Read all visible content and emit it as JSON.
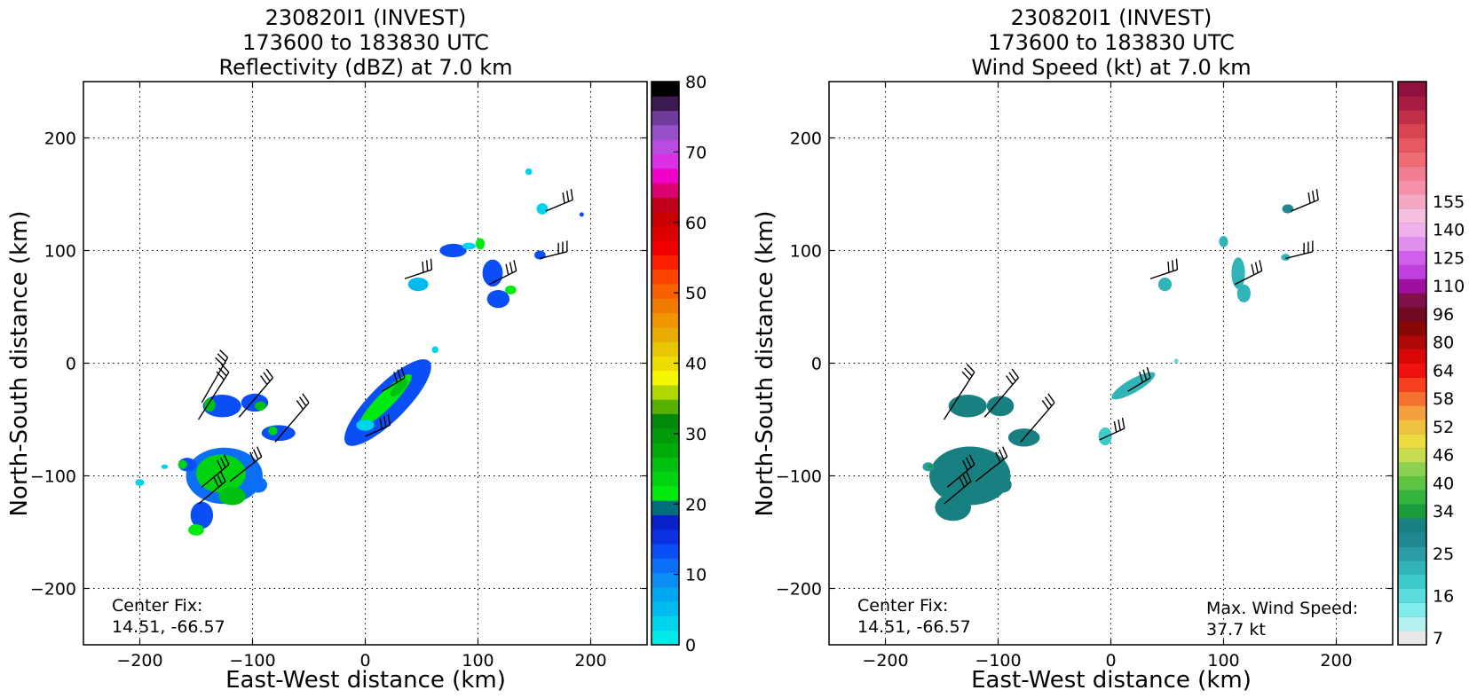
{
  "figure": {
    "background": "#ffffff"
  },
  "chart_data": [
    {
      "type": "heatmap",
      "variant": "reflectivity",
      "title": [
        "230820I1 (INVEST)",
        "173600 to 183830 UTC",
        "Reflectivity (dBZ) at 7.0 km"
      ],
      "xlabel": "East-West distance (km)",
      "ylabel": "North-South distance (km)",
      "xlim": [
        -250,
        250
      ],
      "ylim": [
        -250,
        250
      ],
      "xticks": [
        -200,
        -100,
        0,
        100,
        200
      ],
      "yticks": [
        -200,
        -100,
        0,
        100,
        200
      ],
      "xtick_labels": [
        "−200",
        "−100",
        "0",
        "100",
        "200"
      ],
      "ytick_labels": [
        "−200",
        "−100",
        "0",
        "100",
        "200"
      ],
      "grid": true,
      "annotations": {
        "center_fix_label": "Center Fix:",
        "center_fix_value": "14.51, -66.57"
      },
      "colorbar": {
        "min": 0,
        "max": 80,
        "tick_values": [
          0,
          10,
          20,
          30,
          40,
          50,
          60,
          70,
          80
        ],
        "tick_labels": [
          "0",
          "10",
          "20",
          "30",
          "40",
          "50",
          "60",
          "70",
          "80"
        ],
        "colors": [
          "#00eaea",
          "#00d4ec",
          "#00bcee",
          "#00a6f0",
          "#0a8ef4",
          "#0a6ef6",
          "#0a4ef8",
          "#0a32e2",
          "#0a20c8",
          "#006e7e",
          "#00ea10",
          "#00d410",
          "#00c010",
          "#00ac0a",
          "#009a0a",
          "#008a0a",
          "#58b000",
          "#b0d800",
          "#f6f600",
          "#ecdc00",
          "#e8c600",
          "#e8ac00",
          "#f09400",
          "#f07a00",
          "#f86000",
          "#fc4400",
          "#fc2000",
          "#f00000",
          "#dc0000",
          "#c80000",
          "#c0001c",
          "#dc0070",
          "#f000c8",
          "#dc30e6",
          "#b84ce0",
          "#9650c8",
          "#703c9c",
          "#3c1c50",
          "#000000"
        ]
      },
      "regions": [
        {
          "x": -127,
          "y": -38,
          "rx": 17,
          "ry": 10,
          "value": 14
        },
        {
          "x": -138,
          "y": -37,
          "rx": 5,
          "ry": 6,
          "value": 25
        },
        {
          "x": -98,
          "y": -35,
          "rx": 12,
          "ry": 8,
          "value": 14
        },
        {
          "x": -93,
          "y": -38,
          "rx": 5,
          "ry": 4,
          "value": 25
        },
        {
          "x": -77,
          "y": -62,
          "rx": 15,
          "ry": 7,
          "value": 14
        },
        {
          "x": -82,
          "y": -60,
          "rx": 4,
          "ry": 4,
          "value": 23
        },
        {
          "x": -125,
          "y": -100,
          "rx": 34,
          "ry": 25,
          "value": 12
        },
        {
          "x": -128,
          "y": -98,
          "rx": 22,
          "ry": 17,
          "value": 23
        },
        {
          "x": -145,
          "y": -135,
          "rx": 10,
          "ry": 12,
          "value": 14
        },
        {
          "x": -118,
          "y": -118,
          "rx": 12,
          "ry": 8,
          "value": 26
        },
        {
          "x": -158,
          "y": -90,
          "rx": 8,
          "ry": 6,
          "value": 14
        },
        {
          "x": -162,
          "y": -90,
          "rx": 4,
          "ry": 4,
          "value": 24
        },
        {
          "x": -95,
          "y": -108,
          "rx": 8,
          "ry": 7,
          "value": 12
        },
        {
          "x": -150,
          "y": -148,
          "rx": 7,
          "ry": 5,
          "value": 22
        },
        {
          "x": -200,
          "y": -106,
          "rx": 4,
          "ry": 3,
          "value": 3
        },
        {
          "x": -178,
          "y": -92,
          "rx": 3,
          "ry": 2,
          "value": 4
        },
        {
          "x": 20,
          "y": -35,
          "rx": 52,
          "ry": 16,
          "rotate": -45,
          "value": 13
        },
        {
          "x": 18,
          "y": -33,
          "rx": 32,
          "ry": 7,
          "rotate": -45,
          "value": 22
        },
        {
          "x": 30,
          "y": -22,
          "rx": 10,
          "ry": 4,
          "rotate": -45,
          "value": 25
        },
        {
          "x": 0,
          "y": -55,
          "rx": 8,
          "ry": 5,
          "value": 4
        },
        {
          "x": 62,
          "y": 12,
          "rx": 3,
          "ry": 3,
          "value": 3
        },
        {
          "x": 78,
          "y": 100,
          "rx": 12,
          "ry": 6,
          "value": 13
        },
        {
          "x": 92,
          "y": 104,
          "rx": 6,
          "ry": 3,
          "value": 4
        },
        {
          "x": 102,
          "y": 106,
          "rx": 4,
          "ry": 5,
          "value": 22
        },
        {
          "x": 113,
          "y": 80,
          "rx": 9,
          "ry": 12,
          "value": 14
        },
        {
          "x": 118,
          "y": 57,
          "rx": 10,
          "ry": 8,
          "value": 13
        },
        {
          "x": 129,
          "y": 65,
          "rx": 5,
          "ry": 4,
          "value": 21
        },
        {
          "x": 47,
          "y": 70,
          "rx": 9,
          "ry": 6,
          "value": 5
        },
        {
          "x": 155,
          "y": 96,
          "rx": 5,
          "ry": 4,
          "value": 14
        },
        {
          "x": 157,
          "y": 137,
          "rx": 5,
          "ry": 5,
          "value": 4
        },
        {
          "x": 145,
          "y": 170,
          "rx": 3,
          "ry": 3,
          "value": 4
        },
        {
          "x": 192,
          "y": 132,
          "rx": 2,
          "ry": 2,
          "value": 13
        }
      ],
      "wind_barbs": [
        {
          "x": -148,
          "y": -50,
          "u": 27,
          "v": 42,
          "flags": 3
        },
        {
          "x": -145,
          "y": -35,
          "u": 23,
          "v": 40,
          "flags": 3
        },
        {
          "x": -112,
          "y": -48,
          "u": 30,
          "v": 35,
          "flags": 3
        },
        {
          "x": -80,
          "y": -70,
          "u": 30,
          "v": 35,
          "flags": 3
        },
        {
          "x": -145,
          "y": -110,
          "u": 24,
          "v": 20,
          "flags": 3
        },
        {
          "x": -148,
          "y": -125,
          "u": 24,
          "v": 20,
          "flags": 3
        },
        {
          "x": -120,
          "y": -105,
          "u": 28,
          "v": 22,
          "flags": 3
        },
        {
          "x": 0,
          "y": -65,
          "u": 22,
          "v": 10,
          "flags": 3
        },
        {
          "x": 15,
          "y": -25,
          "u": 20,
          "v": 12,
          "flags": 3
        },
        {
          "x": 35,
          "y": 75,
          "u": 24,
          "v": 8,
          "flags": 3
        },
        {
          "x": 110,
          "y": 70,
          "u": 24,
          "v": 12,
          "flags": 3
        },
        {
          "x": 160,
          "y": 135,
          "u": 24,
          "v": 10,
          "flags": 3
        },
        {
          "x": 155,
          "y": 93,
          "u": 24,
          "v": 6,
          "flags": 3
        }
      ]
    },
    {
      "type": "heatmap",
      "variant": "wind_speed",
      "title": [
        "230820I1 (INVEST)",
        "173600 to 183830 UTC",
        "Wind Speed (kt) at 7.0 km"
      ],
      "xlabel": "East-West distance (km)",
      "ylabel": "North-South distance (km)",
      "xlim": [
        -250,
        250
      ],
      "ylim": [
        -250,
        250
      ],
      "xticks": [
        -200,
        -100,
        0,
        100,
        200
      ],
      "yticks": [
        -200,
        -100,
        0,
        100,
        200
      ],
      "xtick_labels": [
        "−200",
        "−100",
        "0",
        "100",
        "200"
      ],
      "ytick_labels": [
        "−200",
        "−100",
        "0",
        "100",
        "200"
      ],
      "grid": true,
      "annotations": {
        "center_fix_label": "Center Fix:",
        "center_fix_value": "14.51, -66.57",
        "max_wind_label": "Max. Wind Speed:",
        "max_wind_value": "37.7 kt"
      },
      "colorbar": {
        "tick_labels": [
          "7",
          "16",
          "25",
          "34",
          "40",
          "46",
          "52",
          "58",
          "64",
          "80",
          "96",
          "110",
          "125",
          "140",
          "155"
        ],
        "tick_segments": [
          0,
          3,
          6,
          9,
          11,
          13,
          15,
          17,
          19,
          21,
          23,
          25,
          27,
          29,
          31
        ],
        "colors": [
          "#e8e8e8",
          "#b4f0ee",
          "#80ecec",
          "#5cdcdc",
          "#3ccaca",
          "#30b4b8",
          "#2a9ca4",
          "#208890",
          "#188080",
          "#1a9c3c",
          "#36b440",
          "#5cc440",
          "#8cd050",
          "#c8dc50",
          "#ecdc40",
          "#f0c040",
          "#f4a040",
          "#f67030",
          "#f84020",
          "#f01010",
          "#d80808",
          "#b00808",
          "#880808",
          "#700a24",
          "#80104a",
          "#a010a0",
          "#c040e0",
          "#d060ec",
          "#e090ec",
          "#f0b0ec",
          "#f8c0e0",
          "#f4a8c4",
          "#f490a8",
          "#f07c90",
          "#f06c74",
          "#e85860",
          "#d84450",
          "#c03048",
          "#a81c44",
          "#901040"
        ]
      },
      "regions": [
        {
          "x": -127,
          "y": -38,
          "rx": 17,
          "ry": 10,
          "value": 8
        },
        {
          "x": -98,
          "y": -38,
          "rx": 12,
          "ry": 9,
          "value": 8
        },
        {
          "x": -77,
          "y": -66,
          "rx": 14,
          "ry": 8,
          "value": 8
        },
        {
          "x": -125,
          "y": -100,
          "rx": 36,
          "ry": 26,
          "value": 8
        },
        {
          "x": -140,
          "y": -128,
          "rx": 16,
          "ry": 12,
          "value": 8
        },
        {
          "x": -96,
          "y": -108,
          "rx": 8,
          "ry": 7,
          "value": 8
        },
        {
          "x": -162,
          "y": -92,
          "rx": 5,
          "ry": 4,
          "value": 6
        },
        {
          "x": -160,
          "y": -92,
          "rx": 2,
          "ry": 2,
          "value": 9
        },
        {
          "x": 20,
          "y": -20,
          "rx": 22,
          "ry": 6,
          "rotate": -30,
          "value": 5
        },
        {
          "x": -5,
          "y": -65,
          "rx": 6,
          "ry": 8,
          "value": 4
        },
        {
          "x": 58,
          "y": 2,
          "rx": 2,
          "ry": 2,
          "value": 3
        },
        {
          "x": 48,
          "y": 70,
          "rx": 6,
          "ry": 6,
          "value": 5
        },
        {
          "x": 100,
          "y": 108,
          "rx": 4,
          "ry": 5,
          "value": 5
        },
        {
          "x": 113,
          "y": 80,
          "rx": 6,
          "ry": 14,
          "value": 5
        },
        {
          "x": 118,
          "y": 62,
          "rx": 6,
          "ry": 8,
          "value": 5
        },
        {
          "x": 157,
          "y": 137,
          "rx": 5,
          "ry": 4,
          "value": 7
        },
        {
          "x": 155,
          "y": 94,
          "rx": 4,
          "ry": 3,
          "value": 5
        }
      ],
      "wind_barbs": [
        {
          "x": -148,
          "y": -50,
          "u": 27,
          "v": 42,
          "flags": 3
        },
        {
          "x": -112,
          "y": -48,
          "u": 30,
          "v": 35,
          "flags": 3
        },
        {
          "x": -80,
          "y": -70,
          "u": 30,
          "v": 35,
          "flags": 3
        },
        {
          "x": -145,
          "y": -110,
          "u": 24,
          "v": 20,
          "flags": 3
        },
        {
          "x": -148,
          "y": -125,
          "u": 24,
          "v": 20,
          "flags": 3
        },
        {
          "x": -120,
          "y": -105,
          "u": 28,
          "v": 22,
          "flags": 3
        },
        {
          "x": -10,
          "y": -68,
          "u": 22,
          "v": 10,
          "flags": 3
        },
        {
          "x": 15,
          "y": -25,
          "u": 20,
          "v": 12,
          "flags": 3
        },
        {
          "x": 35,
          "y": 75,
          "u": 24,
          "v": 8,
          "flags": 3
        },
        {
          "x": 110,
          "y": 70,
          "u": 24,
          "v": 12,
          "flags": 3
        },
        {
          "x": 160,
          "y": 135,
          "u": 24,
          "v": 10,
          "flags": 3
        },
        {
          "x": 155,
          "y": 93,
          "u": 24,
          "v": 6,
          "flags": 3
        }
      ]
    }
  ]
}
